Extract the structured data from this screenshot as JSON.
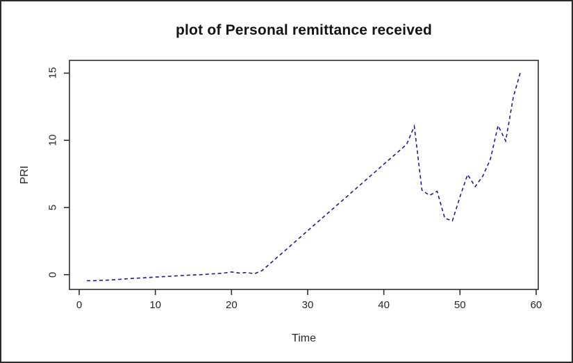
{
  "chart_data": {
    "type": "line",
    "title": "plot of Personal remittance received",
    "xlabel": "Time",
    "ylabel": "PRI",
    "x_ticks": [
      0,
      10,
      20,
      30,
      40,
      50,
      60
    ],
    "y_ticks": [
      0,
      5,
      10,
      15
    ],
    "xlim": [
      -1.28,
      60.28
    ],
    "ylim": [
      -1.1,
      15.95
    ],
    "grid": false,
    "legend": null,
    "line_color": "#1c1c8c",
    "line_style": "dashed",
    "axis_color": "#2e2e2e",
    "x": [
      1,
      2,
      3,
      4,
      5,
      6,
      7,
      8,
      9,
      10,
      11,
      12,
      13,
      14,
      15,
      16,
      17,
      18,
      19,
      20,
      21,
      22,
      23,
      24,
      25,
      26,
      27,
      28,
      29,
      30,
      31,
      32,
      33,
      34,
      35,
      36,
      37,
      38,
      39,
      40,
      41,
      42,
      43,
      44,
      45,
      46,
      47,
      48,
      49,
      50,
      51,
      52,
      53,
      54,
      55,
      56,
      57,
      58
    ],
    "values": [
      -0.45,
      -0.45,
      -0.42,
      -0.4,
      -0.36,
      -0.32,
      -0.28,
      -0.25,
      -0.22,
      -0.18,
      -0.15,
      -0.12,
      -0.08,
      -0.05,
      -0.02,
      0.0,
      0.04,
      0.08,
      0.12,
      0.2,
      0.12,
      0.16,
      0.06,
      0.3,
      0.79,
      1.29,
      1.78,
      2.28,
      2.77,
      3.27,
      3.76,
      4.26,
      4.75,
      5.25,
      5.74,
      6.24,
      6.73,
      7.23,
      7.72,
      8.22,
      8.71,
      9.21,
      9.7,
      11.05,
      6.3,
      5.9,
      6.2,
      4.2,
      4.0,
      5.8,
      7.45,
      6.55,
      7.35,
      8.6,
      11.1,
      9.95,
      13.2,
      15.2
    ]
  }
}
